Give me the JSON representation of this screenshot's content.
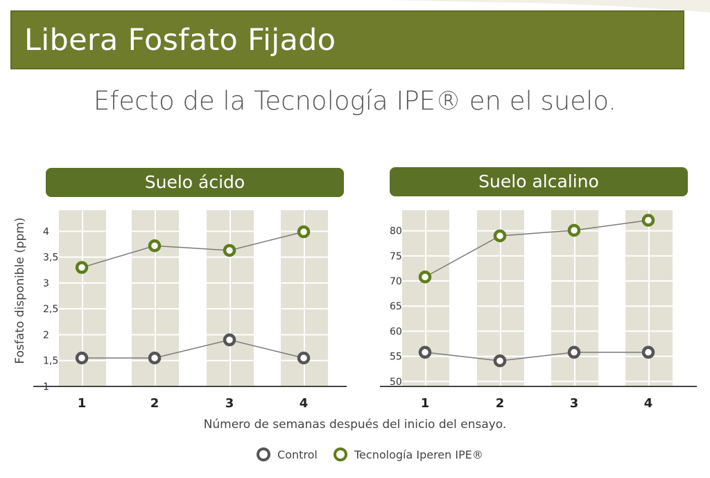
{
  "header": {
    "title": "Libera Fosfato Fijado"
  },
  "subtitle": "Efecto de la Tecnología IPE® en el suelo.",
  "shared": {
    "ylabel": "Fosfato disponible (ppm)",
    "xlabel": "Número de semanas después del inicio del ensayo."
  },
  "legend": {
    "control": "Control",
    "ipe": "Tecnología Iperen IPE®"
  },
  "colors": {
    "banner": "#6e7c2c",
    "pill": "#5b7126",
    "band": "#e2e1d4",
    "ipe": "#5e7d1c",
    "control": "#555555",
    "axis": "#444444"
  },
  "chart_data": [
    {
      "type": "line",
      "title": "Suelo ácido",
      "categories": [
        "1",
        "2",
        "3",
        "4"
      ],
      "ylim": [
        1,
        4.3
      ],
      "yticks": [
        1,
        1.5,
        2,
        2.5,
        3,
        3.5,
        4
      ],
      "ytick_labels": [
        "1",
        "1,5",
        "2",
        "2,5",
        "3",
        "3,5",
        "4"
      ],
      "series": [
        {
          "name": "Tecnología Iperen IPE®",
          "values": [
            3.3,
            3.72,
            3.63,
            3.99
          ]
        },
        {
          "name": "Control",
          "values": [
            1.55,
            1.55,
            1.9,
            1.55
          ]
        }
      ]
    },
    {
      "type": "line",
      "title": "Suelo alcalino",
      "categories": [
        "1",
        "2",
        "3",
        "4"
      ],
      "ylim": [
        49,
        83
      ],
      "yticks": [
        50,
        55,
        60,
        65,
        70,
        75,
        80
      ],
      "ytick_labels": [
        "50",
        "55",
        "60",
        "65",
        "70",
        "75",
        "80"
      ],
      "series": [
        {
          "name": "Tecnología Iperen IPE®",
          "values": [
            70.8,
            79,
            80.1,
            82.1
          ]
        },
        {
          "name": "Control",
          "values": [
            55.8,
            54.1,
            55.8,
            55.8
          ]
        }
      ]
    }
  ]
}
